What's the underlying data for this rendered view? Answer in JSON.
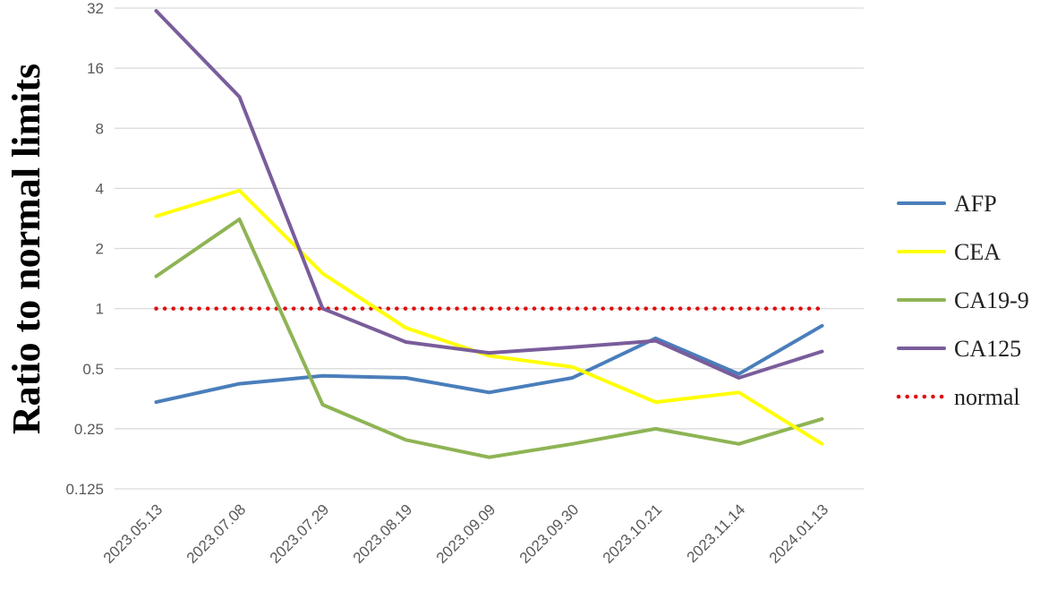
{
  "chart_data": {
    "type": "line",
    "title": "",
    "xlabel": "",
    "ylabel": "Ratio to normal limits",
    "y_scale": "log2",
    "ylim": [
      0.125,
      32
    ],
    "y_ticks": [
      0.125,
      0.25,
      0.5,
      1,
      2,
      4,
      8,
      16,
      32
    ],
    "y_tick_labels": [
      "0.125",
      "0.25",
      "0.5",
      "1",
      "2",
      "4",
      "8",
      "16",
      "32"
    ],
    "grid": "horizontal",
    "legend_position": "right",
    "categories": [
      "2023.05.13",
      "2023.07.08",
      "2023.07.29",
      "2023.08.19",
      "2023.09.09",
      "2023.09.30",
      "2023.10.21",
      "2023.11.14",
      "2024.01.13"
    ],
    "series": [
      {
        "name": "AFP",
        "color": "#4a7ebb",
        "style": "solid",
        "values": [
          0.34,
          0.42,
          0.46,
          0.45,
          0.38,
          0.45,
          0.71,
          0.47,
          0.82
        ]
      },
      {
        "name": "CEA",
        "color": "#ffff00",
        "style": "solid",
        "values": [
          2.9,
          3.9,
          1.5,
          0.8,
          0.58,
          0.51,
          0.34,
          0.38,
          0.21
        ]
      },
      {
        "name": "CA19-9",
        "color": "#8eb454",
        "style": "solid",
        "values": [
          1.45,
          2.8,
          0.33,
          0.22,
          0.18,
          0.21,
          0.25,
          0.21,
          0.28
        ]
      },
      {
        "name": "CA125",
        "color": "#7a5d9b",
        "style": "solid",
        "values": [
          31,
          11.5,
          1.0,
          0.68,
          0.6,
          0.64,
          0.69,
          0.45,
          0.61
        ]
      },
      {
        "name": "normal",
        "color": "#e01010",
        "style": "dotted",
        "values": [
          1,
          1,
          1,
          1,
          1,
          1,
          1,
          1,
          1
        ]
      }
    ]
  }
}
